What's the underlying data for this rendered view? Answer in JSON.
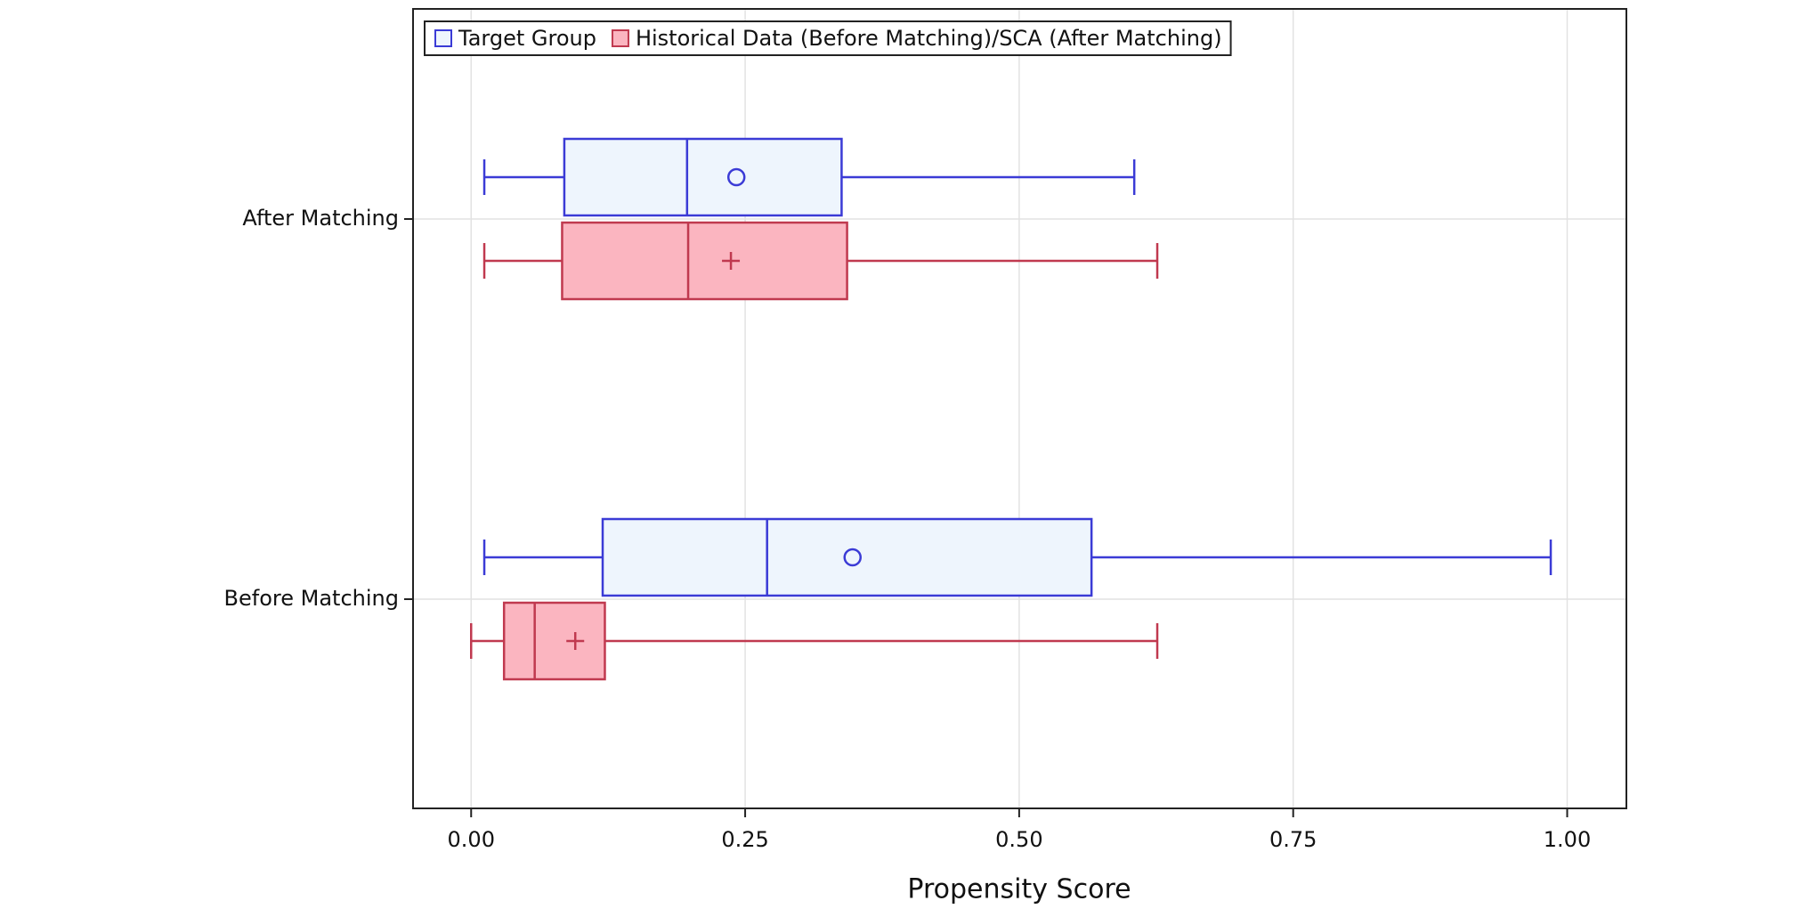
{
  "chart_data": {
    "type": "boxplot",
    "orientation": "horizontal",
    "x_label": "Propensity Score",
    "categories": [
      "After Matching",
      "Before Matching"
    ],
    "xlim": [
      -0.053,
      1.054
    ],
    "xticks": [
      {
        "value": 0,
        "label": "0.00"
      },
      {
        "value": 0.25,
        "label": "0.25"
      },
      {
        "value": 0.5,
        "label": "0.50"
      },
      {
        "value": 0.75,
        "label": "0.75"
      },
      {
        "value": 1,
        "label": "1.00"
      }
    ],
    "grid": true,
    "legend": "top-left",
    "series": [
      {
        "name": "Target Group",
        "color": "#3b3bd6",
        "fill": "#eef5fd",
        "marker": "circle",
        "min": [
          0.012,
          0.012
        ],
        "q1": [
          0.085,
          0.12
        ],
        "median": [
          0.197,
          0.27
        ],
        "q3": [
          0.338,
          0.566
        ],
        "max": [
          0.605,
          0.985
        ],
        "mean": [
          0.242,
          0.348
        ]
      },
      {
        "name": "Historical Data (Before Matching)/SCA (After Matching)",
        "color": "#c0394f",
        "fill": "#fbb5c0",
        "marker": "plus",
        "min": [
          0.012,
          0.0
        ],
        "q1": [
          0.083,
          0.03
        ],
        "median": [
          0.198,
          0.058
        ],
        "q3": [
          0.343,
          0.122
        ],
        "max": [
          0.626,
          0.626
        ],
        "mean": [
          0.237,
          0.095
        ]
      }
    ]
  }
}
